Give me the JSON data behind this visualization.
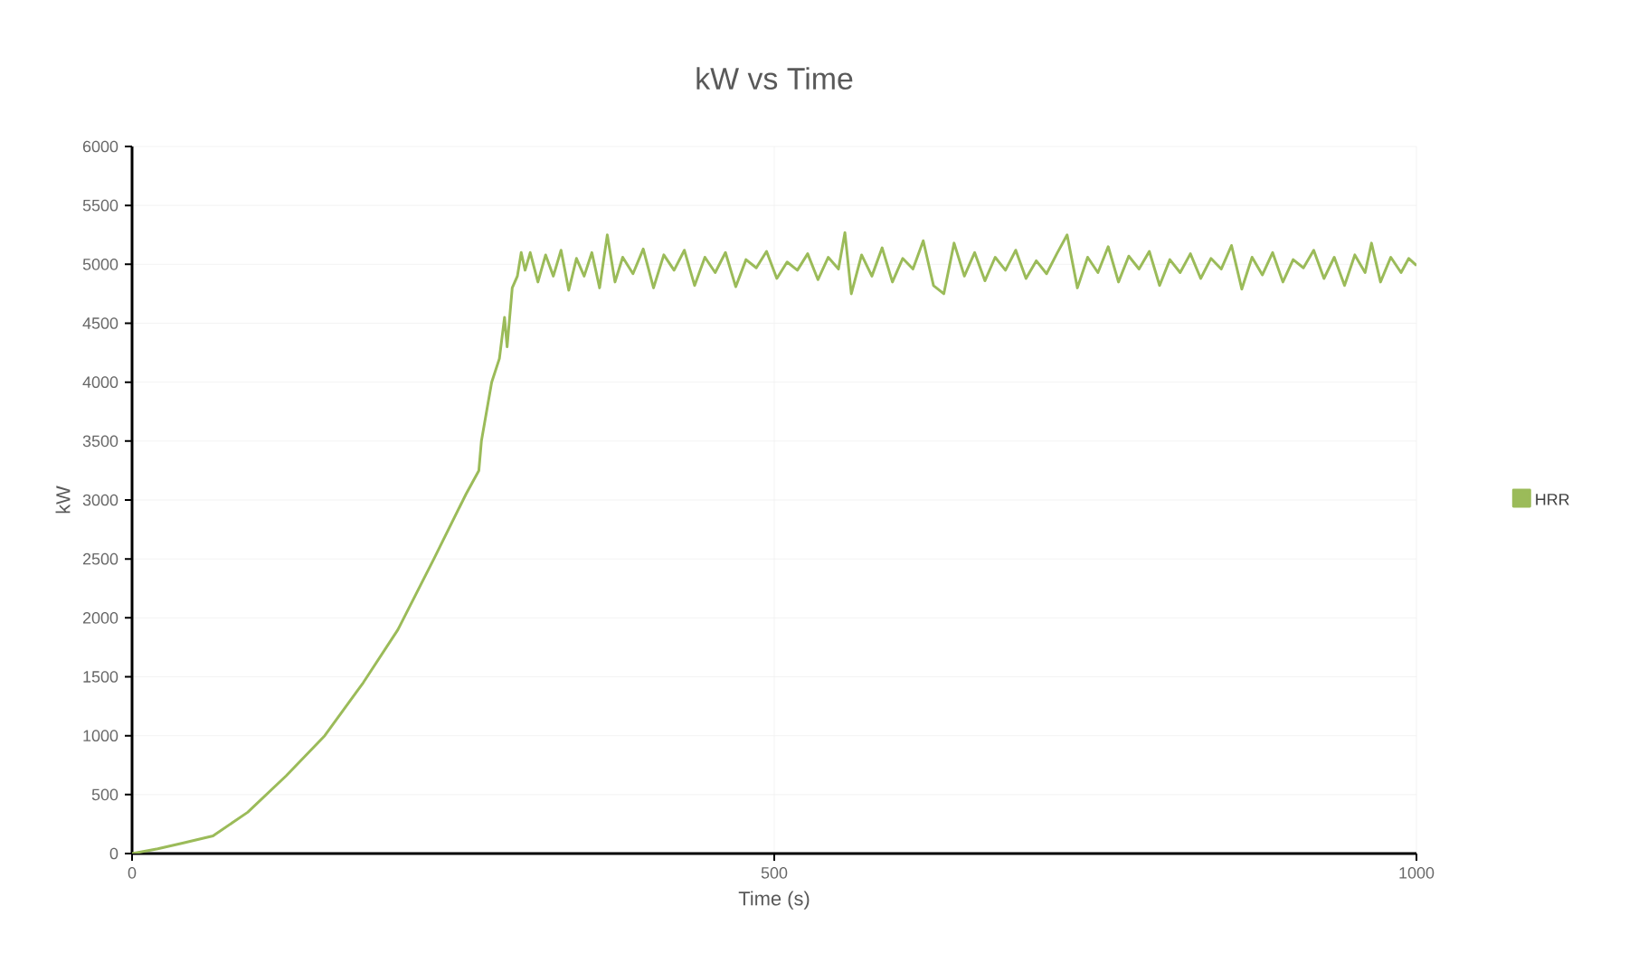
{
  "chart_data": {
    "type": "line",
    "title": "kW vs Time",
    "xlabel": "Time (s)",
    "ylabel": "kW",
    "x": [
      0,
      20,
      40,
      63,
      90,
      120,
      150,
      180,
      207,
      235,
      260,
      270,
      272,
      280,
      286,
      290,
      292,
      296,
      300,
      303,
      306,
      310,
      316,
      322,
      328,
      334,
      340,
      346,
      352,
      358,
      364,
      370,
      376,
      382,
      390,
      398,
      406,
      414,
      422,
      430,
      438,
      446,
      454,
      462,
      470,
      478,
      486,
      494,
      502,
      510,
      518,
      526,
      534,
      542,
      550,
      555,
      560,
      568,
      576,
      584,
      592,
      600,
      608,
      616,
      624,
      632,
      640,
      648,
      656,
      664,
      672,
      680,
      688,
      696,
      704,
      712,
      720,
      728,
      736,
      744,
      752,
      760,
      768,
      776,
      784,
      792,
      800,
      808,
      816,
      824,
      832,
      840,
      848,
      856,
      864,
      872,
      880,
      888,
      896,
      904,
      912,
      920,
      928,
      936,
      944,
      952,
      960,
      965,
      972,
      980,
      988,
      994,
      1000
    ],
    "series": [
      {
        "name": "HRR",
        "color": "#9bbb59",
        "values": [
          0,
          40,
          90,
          150,
          350,
          660,
          1000,
          1450,
          1900,
          2500,
          3050,
          3250,
          3500,
          4000,
          4200,
          4550,
          4300,
          4800,
          4900,
          5100,
          4950,
          5100,
          4850,
          5080,
          4900,
          5120,
          4780,
          5050,
          4900,
          5100,
          4800,
          5250,
          4850,
          5060,
          4920,
          5130,
          4800,
          5080,
          4950,
          5120,
          4820,
          5060,
          4930,
          5100,
          4810,
          5040,
          4970,
          5110,
          4880,
          5020,
          4950,
          5090,
          4870,
          5060,
          4960,
          5270,
          4750,
          5080,
          4900,
          5140,
          4850,
          5050,
          4960,
          5200,
          4820,
          4750,
          5180,
          4900,
          5100,
          4860,
          5060,
          4950,
          5120,
          4880,
          5030,
          4920,
          5090,
          5250,
          4800,
          5060,
          4930,
          5150,
          4850,
          5070,
          4960,
          5110,
          4820,
          5040,
          4930,
          5090,
          4880,
          5050,
          4960,
          5160,
          4790,
          5060,
          4910,
          5100,
          4850,
          5040,
          4970,
          5120,
          4880,
          5060,
          4820,
          5080,
          4930,
          5180,
          4850,
          5060,
          4930,
          5050,
          4990
        ]
      }
    ],
    "xlim": [
      0,
      1000
    ],
    "ylim": [
      0,
      6000
    ],
    "xticks": [
      0,
      500,
      1000
    ],
    "yticks": [
      0,
      500,
      1000,
      1500,
      2000,
      2500,
      3000,
      3500,
      4000,
      4500,
      5000,
      5500,
      6000
    ],
    "grid": true,
    "legend": "right",
    "marker": "none",
    "line_style": "solid"
  }
}
